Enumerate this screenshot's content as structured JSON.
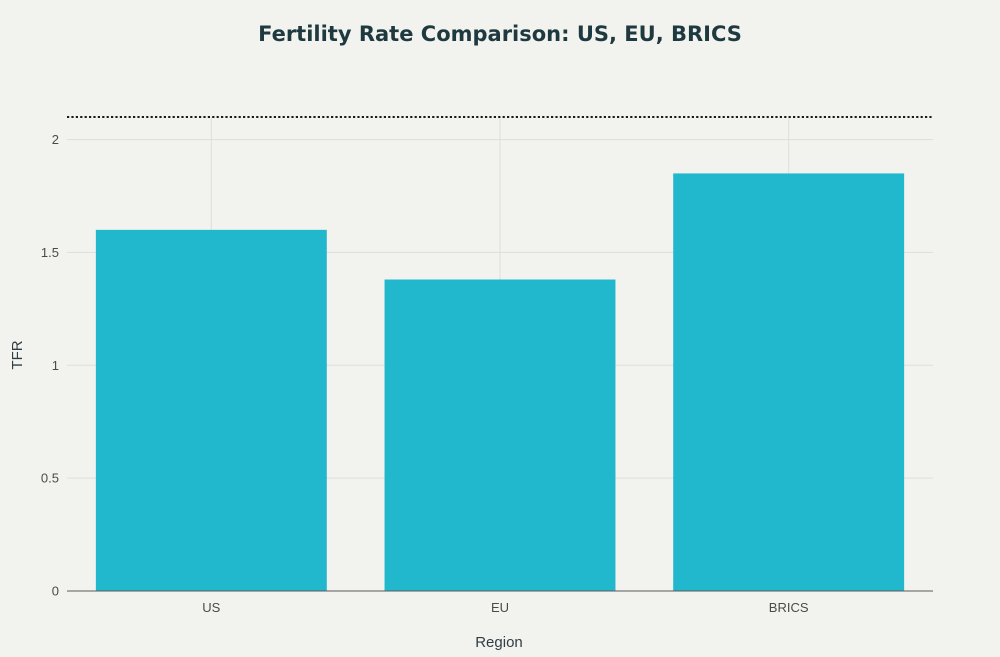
{
  "chart_data": {
    "type": "bar",
    "title": "Fertility Rate Comparison: US, EU, BRICS",
    "xlabel": "Region",
    "ylabel": "TFR",
    "categories": [
      "US",
      "EU",
      "BRICS"
    ],
    "values": [
      1.6,
      1.38,
      1.85
    ],
    "ylim": [
      0,
      2.1
    ],
    "yticks": [
      0,
      0.5,
      1,
      1.5,
      2
    ],
    "ytick_labels": [
      "0",
      "0.5",
      "1",
      "1.5",
      "2"
    ],
    "reference_line": {
      "y": 2.1,
      "style": "dotted"
    },
    "grid": true,
    "colors": {
      "bar": "#21b8cd",
      "background": "#f2f2ee",
      "title": "#1e3a40"
    }
  }
}
